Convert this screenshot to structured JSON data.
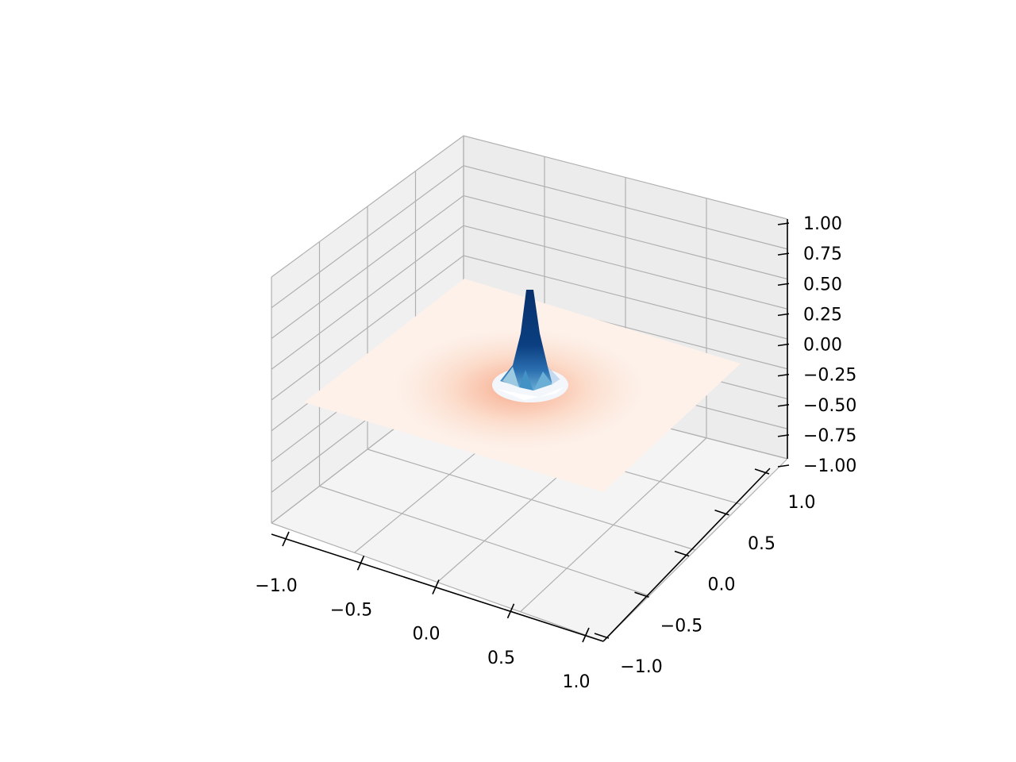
{
  "chart_data": {
    "type": "surface3d",
    "title": "",
    "xlabel": "",
    "ylabel": "",
    "zlabel": "",
    "function": "sinc-like radial ripple, peak at origin",
    "x": {
      "range": [
        -1.0,
        1.0
      ],
      "ticks": [
        -1.0,
        -0.5,
        0.0,
        0.5,
        1.0
      ],
      "tick_labels": [
        "−1.0",
        "−0.5",
        "0.0",
        "0.5",
        "1.0"
      ]
    },
    "y": {
      "range": [
        -1.0,
        1.0
      ],
      "ticks": [
        -1.0,
        -0.5,
        0.0,
        0.5,
        1.0
      ],
      "tick_labels": [
        "−1.0",
        "−0.5",
        "0.0",
        "0.5",
        "1.0"
      ]
    },
    "z": {
      "range": [
        -1.0,
        1.0
      ],
      "ticks": [
        -1.0,
        -0.75,
        -0.5,
        -0.25,
        0.0,
        0.25,
        0.5,
        0.75,
        1.0
      ],
      "tick_labels": [
        "−1.00",
        "−0.75",
        "−0.50",
        "−0.25",
        "0.00",
        "0.25",
        "0.50",
        "0.75",
        "1.00"
      ]
    },
    "surface": {
      "peak_value": 1.0,
      "base_value": 0.0,
      "colormap_high": "RdBu",
      "peak_colors": [
        "#08306b",
        "#2171b5",
        "#6baed6",
        "#c6dbef",
        "#f7fbff"
      ],
      "base_colors": [
        "#fdeee6",
        "#fcd5c2",
        "#f9b9a0"
      ]
    },
    "grid": true,
    "pane_color": "#f2f2f2",
    "grid_color": "#b0b0b0"
  }
}
